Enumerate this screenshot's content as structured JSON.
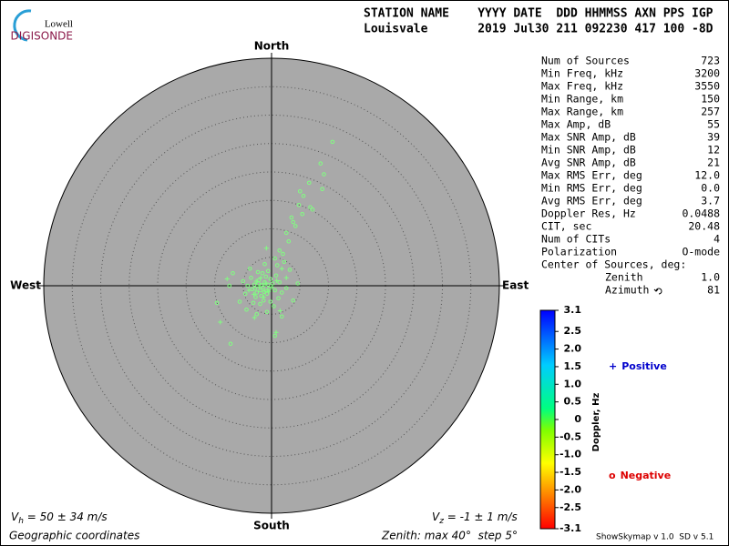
{
  "header": {
    "logo_top": "Lowell",
    "logo_bottom": "DIGISONDE",
    "line1": "STATION NAME    YYYY DATE  DDD HHMMSS AXN PPS IGP",
    "line2": "Louisvale       2019 Jul30 211 092230 417 100 -8D"
  },
  "stats": {
    "rows": [
      [
        "Num of Sources",
        "723"
      ],
      [
        "Min Freq, kHz",
        "3200"
      ],
      [
        "Max Freq, kHz",
        "3550"
      ],
      [
        "Min Range, km",
        "150"
      ],
      [
        "Max Range, km",
        "257"
      ],
      [
        "Max Amp, dB",
        "55"
      ],
      [
        "Max SNR Amp, dB",
        "39"
      ],
      [
        "Min SNR Amp, dB",
        "12"
      ],
      [
        "Avg SNR Amp, dB",
        "21"
      ],
      [
        "Max RMS Err, deg",
        "12.0"
      ],
      [
        "Min RMS Err, deg",
        "0.0"
      ],
      [
        "Avg RMS Err, deg",
        "3.7"
      ],
      [
        "Doppler Res, Hz",
        "0.0488"
      ],
      [
        "CIT, sec",
        "20.48"
      ],
      [
        "Num of CITs",
        "4"
      ],
      [
        "Polarization",
        "O-mode"
      ]
    ],
    "center_label": "Center of Sources, deg:",
    "zenith": [
      "Zenith",
      "1.0"
    ],
    "azimuth": [
      "Azimuth",
      "81"
    ]
  },
  "footer": {
    "vh_main": "V",
    "vh_sub": "h",
    "vh_rest": " = 50 ± 34 m/s",
    "vz_main": "V",
    "vz_sub": "z",
    "vz_rest": " = -1 ± 1 m/s",
    "coords": "Geographic coordinates",
    "zenith_note": "Zenith: max 40°  step 5°",
    "version": "ShowSkymap v 1.0  SD v 5.1"
  },
  "chart_data": {
    "type": "skymap",
    "directions": {
      "north": "North",
      "south": "South",
      "east": "East",
      "west": "West"
    },
    "xlim": [
      -40,
      40
    ],
    "ylim": [
      -40,
      40
    ],
    "rings": [
      5,
      10,
      15,
      20,
      25,
      30,
      35
    ],
    "point_color": "#80ff80",
    "background": "#a9a9a9",
    "series": [
      {
        "name": "Negative",
        "marker": "o",
        "color": "#dd0000",
        "x": [
          10.7,
          8.6,
          9.2,
          6.6,
          5.0,
          5.6,
          8.9,
          4.8,
          7.2,
          3.5,
          4.2,
          5.4,
          2.6,
          3.0,
          1.4,
          0.6,
          2.0,
          6.8,
          3.8,
          1.0,
          -2.0,
          -1.5,
          -2.6,
          -1.2,
          -0.4,
          -3.0,
          -2.2,
          -1.8,
          -0.8,
          0.2,
          -3.4,
          -2.8,
          -1.0,
          -0.2,
          0.6,
          -1.6,
          -2.4,
          -3.6,
          -4.2,
          -0.6,
          0.8,
          1.4,
          1.8,
          -1.4,
          -2.0,
          -0.2,
          0.4,
          -3.2,
          -4.6,
          -5.0,
          -7.4,
          -6.8,
          -9.6,
          -7.2,
          0.6,
          1.8,
          3.8,
          4.6,
          3.2,
          2.2,
          -1.2,
          -3.8,
          -5.6,
          -4.4,
          -2.6,
          -0.8,
          1.2,
          2.6,
          -1.0,
          -2.3,
          -1.7,
          -2.9,
          -0.6,
          -1.3
        ],
        "y": [
          25.3,
          21.5,
          19.6,
          18.1,
          16.6,
          15.8,
          17.0,
          14.2,
          13.4,
          12.0,
          10.5,
          12.6,
          9.3,
          7.8,
          6.2,
          4.8,
          5.6,
          13.8,
          11.2,
          3.6,
          -0.8,
          -0.3,
          -1.2,
          0.6,
          -0.5,
          0.2,
          1.0,
          -1.8,
          -1.4,
          0.4,
          -0.6,
          -2.0,
          1.6,
          1.2,
          -0.8,
          2.2,
          2.4,
          1.4,
          0.0,
          2.6,
          1.8,
          0.6,
          -1.2,
          -2.6,
          -3.2,
          -2.8,
          -3.6,
          -3.0,
          -1.4,
          0.8,
          0.0,
          2.2,
          -3.0,
          -10.2,
          -8.8,
          -5.4,
          -2.6,
          0.4,
          2.8,
          4.2,
          3.8,
          3.0,
          -2.8,
          -4.2,
          -5.0,
          -4.6,
          -2.2,
          -0.4,
          -0.9,
          0.4,
          0.1,
          -0.5,
          0.2,
          -1.1
        ]
      },
      {
        "name": "Positive",
        "marker": "+",
        "color": "#0000cc",
        "x": [
          -2.2,
          -1.1,
          -0.5,
          -3.1,
          -1.9,
          0.1,
          -2.7,
          -1.4,
          0.9,
          -4.0,
          -9.0,
          0.8,
          -3.0,
          1.5,
          -0.9,
          1.8,
          -7.8,
          2.6
        ],
        "y": [
          -0.2,
          0.3,
          -1.0,
          -1.5,
          1.4,
          -0.2,
          0.8,
          -2.0,
          0.9,
          -0.8,
          -6.4,
          -8.2,
          -5.6,
          -4.4,
          6.6,
          3.0,
          1.2,
          1.4
        ]
      }
    ],
    "colorbar": {
      "label": "Doppler, Hz",
      "lim": [
        -3.1,
        3.1
      ],
      "ticks": [
        3.1,
        2.5,
        {
          "value": 2,
          "label": "2.0"
        },
        1.5,
        {
          "value": 1,
          "label": "1.0"
        },
        0.5,
        0,
        -0.5,
        {
          "value": -1,
          "label": "-1.0"
        },
        -1.5,
        {
          "value": -2,
          "label": "-2.0"
        },
        -2.5,
        -3.1
      ]
    }
  }
}
